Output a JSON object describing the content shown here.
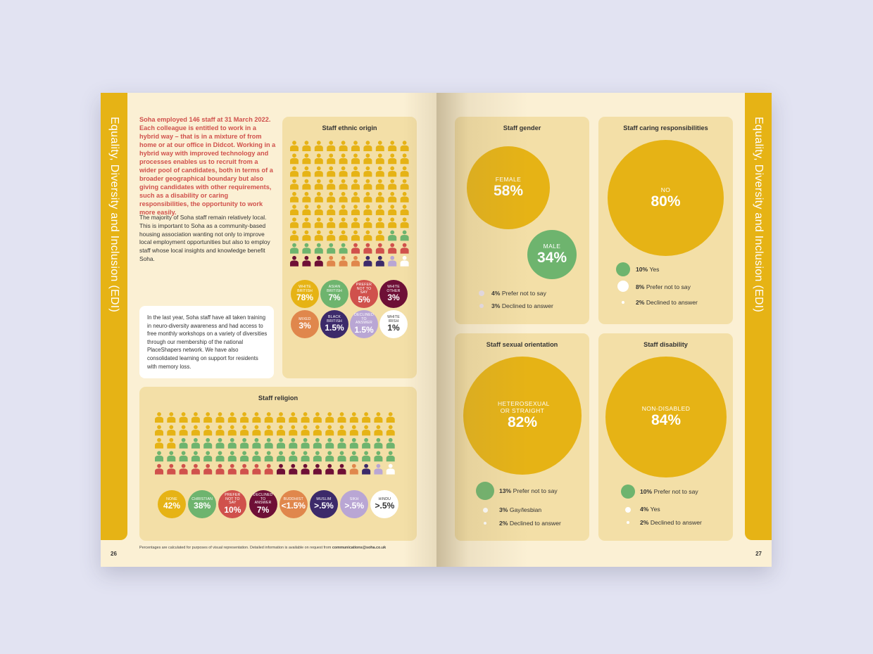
{
  "section_title": "Equality, Diversity and Inclusion (EDI)",
  "page_left": "26",
  "page_right": "27",
  "intro_highlight": "Soha employed 146 staff at 31 March 2022. Each colleague is entitled to work in a hybrid way – that is in a mixture of from home or at our office in Didcot. Working in a hybrid way with improved technology and processes enables us to recruit from a wider pool of candidates, both in terms of a broader geographical boundary but also giving candidates with other requirements, such as a disability or caring responsibilities, the opportunity to work more easily.",
  "intro_body": "The majority of Soha staff remain relatively local. This is important to Soha as a community-based housing association wanting not only to improve local employment opportunities but also to employ staff whose local insights and knowledge benefit Soha.",
  "note_box": "In the last year, Soha staff have all taken training in neuro-diversity awareness and had access to free monthly workshops on a variety of diversities through our membership of the national PlaceShapers network. We have also consolidated learning on support for residents with memory loss.",
  "footnote": {
    "text": "Percentages are calculated for purposes of visual representation. Detailed information is available on request from ",
    "email": "communications@soha.co.uk"
  },
  "colors": {
    "gold": "#e6b315",
    "green": "#6eb46e",
    "red": "#d0514c",
    "maroon": "#6e0f36",
    "orange": "#e0874c",
    "navy": "#3c2a6a",
    "lavender": "#b9a6d4",
    "white": "#ffffff",
    "panel": "#f3dfa7",
    "page": "#fbf0d4"
  },
  "chart_data": [
    {
      "type": "pictogram",
      "title": "Staff ethnic origin",
      "grid": {
        "columns": 10,
        "rows": 10
      },
      "categories": [
        {
          "label": "WHITE BRITISH",
          "value": "78%",
          "percent": 78,
          "color": "#e6b315"
        },
        {
          "label": "ASIAN BRITISH",
          "value": "7%",
          "percent": 7,
          "color": "#6eb46e"
        },
        {
          "label": "PREFER NOT TO SAY",
          "value": "5%",
          "percent": 5,
          "color": "#d0514c"
        },
        {
          "label": "WHITE OTHER",
          "value": "3%",
          "percent": 3,
          "color": "#6e0f36"
        },
        {
          "label": "MIXED",
          "value": "3%",
          "percent": 3,
          "color": "#e0874c"
        },
        {
          "label": "BLACK BRITISH",
          "value": "1.5%",
          "percent": 1.5,
          "color": "#3c2a6a"
        },
        {
          "label": "DECLINED TO ANSWER",
          "value": "1.5%",
          "percent": 1.5,
          "color": "#b9a6d4"
        },
        {
          "label": "WHITE IRISH",
          "value": "1%",
          "percent": 1,
          "color": "#ffffff"
        }
      ]
    },
    {
      "type": "pictogram",
      "title": "Staff religion",
      "grid": {
        "columns": 20,
        "rows": 5
      },
      "categories": [
        {
          "label": "NONE",
          "value": "42%",
          "percent": 42,
          "color": "#e6b315"
        },
        {
          "label": "CHRISTIAN",
          "value": "38%",
          "percent": 38,
          "color": "#6eb46e"
        },
        {
          "label": "PREFER NOT TO SAY",
          "value": "10%",
          "percent": 10,
          "color": "#d0514c"
        },
        {
          "label": "DECLINED TO ANSWER",
          "value": "7%",
          "percent": 7,
          "color": "#6e0f36"
        },
        {
          "label": "BUDDHIST",
          "value": "<1.5%",
          "percent": 1.5,
          "color": "#e0874c"
        },
        {
          "label": "MUSLIM",
          "value": ">.5%",
          "percent": 0.5,
          "color": "#3c2a6a"
        },
        {
          "label": "SIKH",
          "value": ">.5%",
          "percent": 0.5,
          "color": "#b9a6d4"
        },
        {
          "label": "HINDU",
          "value": ">.5%",
          "percent": 0.5,
          "color": "#ffffff"
        }
      ]
    },
    {
      "type": "bubble",
      "title": "Staff gender",
      "bubbles": [
        {
          "label": "FEMALE",
          "value": "58%",
          "percent": 58,
          "color": "#e6b315"
        },
        {
          "label": "MALE",
          "value": "34%",
          "percent": 34,
          "color": "#6eb46e"
        }
      ],
      "legend": [
        {
          "value": "4%",
          "text": "Prefer not to say",
          "percent": 4,
          "color": "#e8e0ec"
        },
        {
          "value": "3%",
          "text": "Declined to answer",
          "percent": 3,
          "color": "#e8e0ec"
        }
      ]
    },
    {
      "type": "bubble",
      "title": "Staff caring responsibilities",
      "bubbles": [
        {
          "label": "NO",
          "value": "80%",
          "percent": 80,
          "color": "#e6b315"
        }
      ],
      "legend": [
        {
          "value": "10%",
          "text": "Yes",
          "percent": 10,
          "color": "#6eb46e"
        },
        {
          "value": "8%",
          "text": "Prefer not to say",
          "percent": 8,
          "color": "#ffffff"
        },
        {
          "value": "2%",
          "text": "Declined to answer",
          "percent": 2,
          "color": "#ffffff"
        }
      ]
    },
    {
      "type": "bubble",
      "title": "Staff sexual orientation",
      "bubbles": [
        {
          "label": "HETEROSEXUAL OR STRAIGHT",
          "value": "82%",
          "percent": 82,
          "color": "#e6b315"
        }
      ],
      "legend": [
        {
          "value": "13%",
          "text": "Prefer not to say",
          "percent": 13,
          "color": "#6eb46e"
        },
        {
          "value": "3%",
          "text": "Gay/lesbian",
          "percent": 3,
          "color": "#ffffff"
        },
        {
          "value": "2%",
          "text": "Declined to answer",
          "percent": 2,
          "color": "#ffffff"
        }
      ]
    },
    {
      "type": "bubble",
      "title": "Staff disability",
      "bubbles": [
        {
          "label": "NON-DISABLED",
          "value": "84%",
          "percent": 84,
          "color": "#e6b315"
        }
      ],
      "legend": [
        {
          "value": "10%",
          "text": "Prefer not to say",
          "percent": 10,
          "color": "#6eb46e"
        },
        {
          "value": "4%",
          "text": "Yes",
          "percent": 4,
          "color": "#ffffff"
        },
        {
          "value": "2%",
          "text": "Declined to answer",
          "percent": 2,
          "color": "#ffffff"
        }
      ]
    }
  ]
}
